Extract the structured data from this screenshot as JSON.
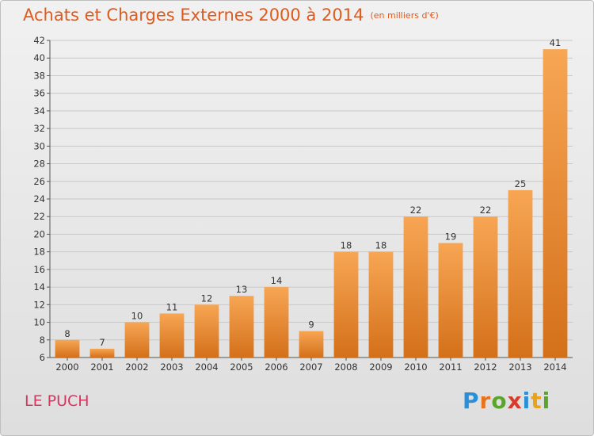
{
  "title": "Achats et Charges Externes 2000 à 2014",
  "subtitle": "(en milliers d'€)",
  "commune": "LE PUCH",
  "brand": {
    "letters": [
      {
        "ch": "P",
        "color": "#2b8fd8"
      },
      {
        "ch": "r",
        "color": "#e8731c"
      },
      {
        "ch": "o",
        "color": "#5aa62a"
      },
      {
        "ch": "x",
        "color": "#d93b2b"
      },
      {
        "ch": "i",
        "color": "#2b8fd8"
      },
      {
        "ch": "t",
        "color": "#e8a21c"
      },
      {
        "ch": "i",
        "color": "#5aa62a"
      }
    ]
  },
  "colors": {
    "bar_light": "#f7a654",
    "bar_dark": "#d4701a",
    "title": "#e05a1c",
    "commune": "#d9345e",
    "grid": "#c8c8c8"
  },
  "chart_data": {
    "type": "bar",
    "categories": [
      "2000",
      "2001",
      "2002",
      "2003",
      "2004",
      "2005",
      "2006",
      "2007",
      "2008",
      "2009",
      "2010",
      "2011",
      "2012",
      "2013",
      "2014"
    ],
    "values": [
      8,
      7,
      10,
      11,
      12,
      13,
      14,
      9,
      18,
      18,
      22,
      19,
      22,
      25,
      41
    ],
    "ylim": [
      6,
      42
    ],
    "yticks": [
      6,
      8,
      10,
      12,
      14,
      16,
      18,
      20,
      22,
      24,
      26,
      28,
      30,
      32,
      34,
      36,
      38,
      40,
      42
    ],
    "grid": true,
    "data_labels": true
  }
}
